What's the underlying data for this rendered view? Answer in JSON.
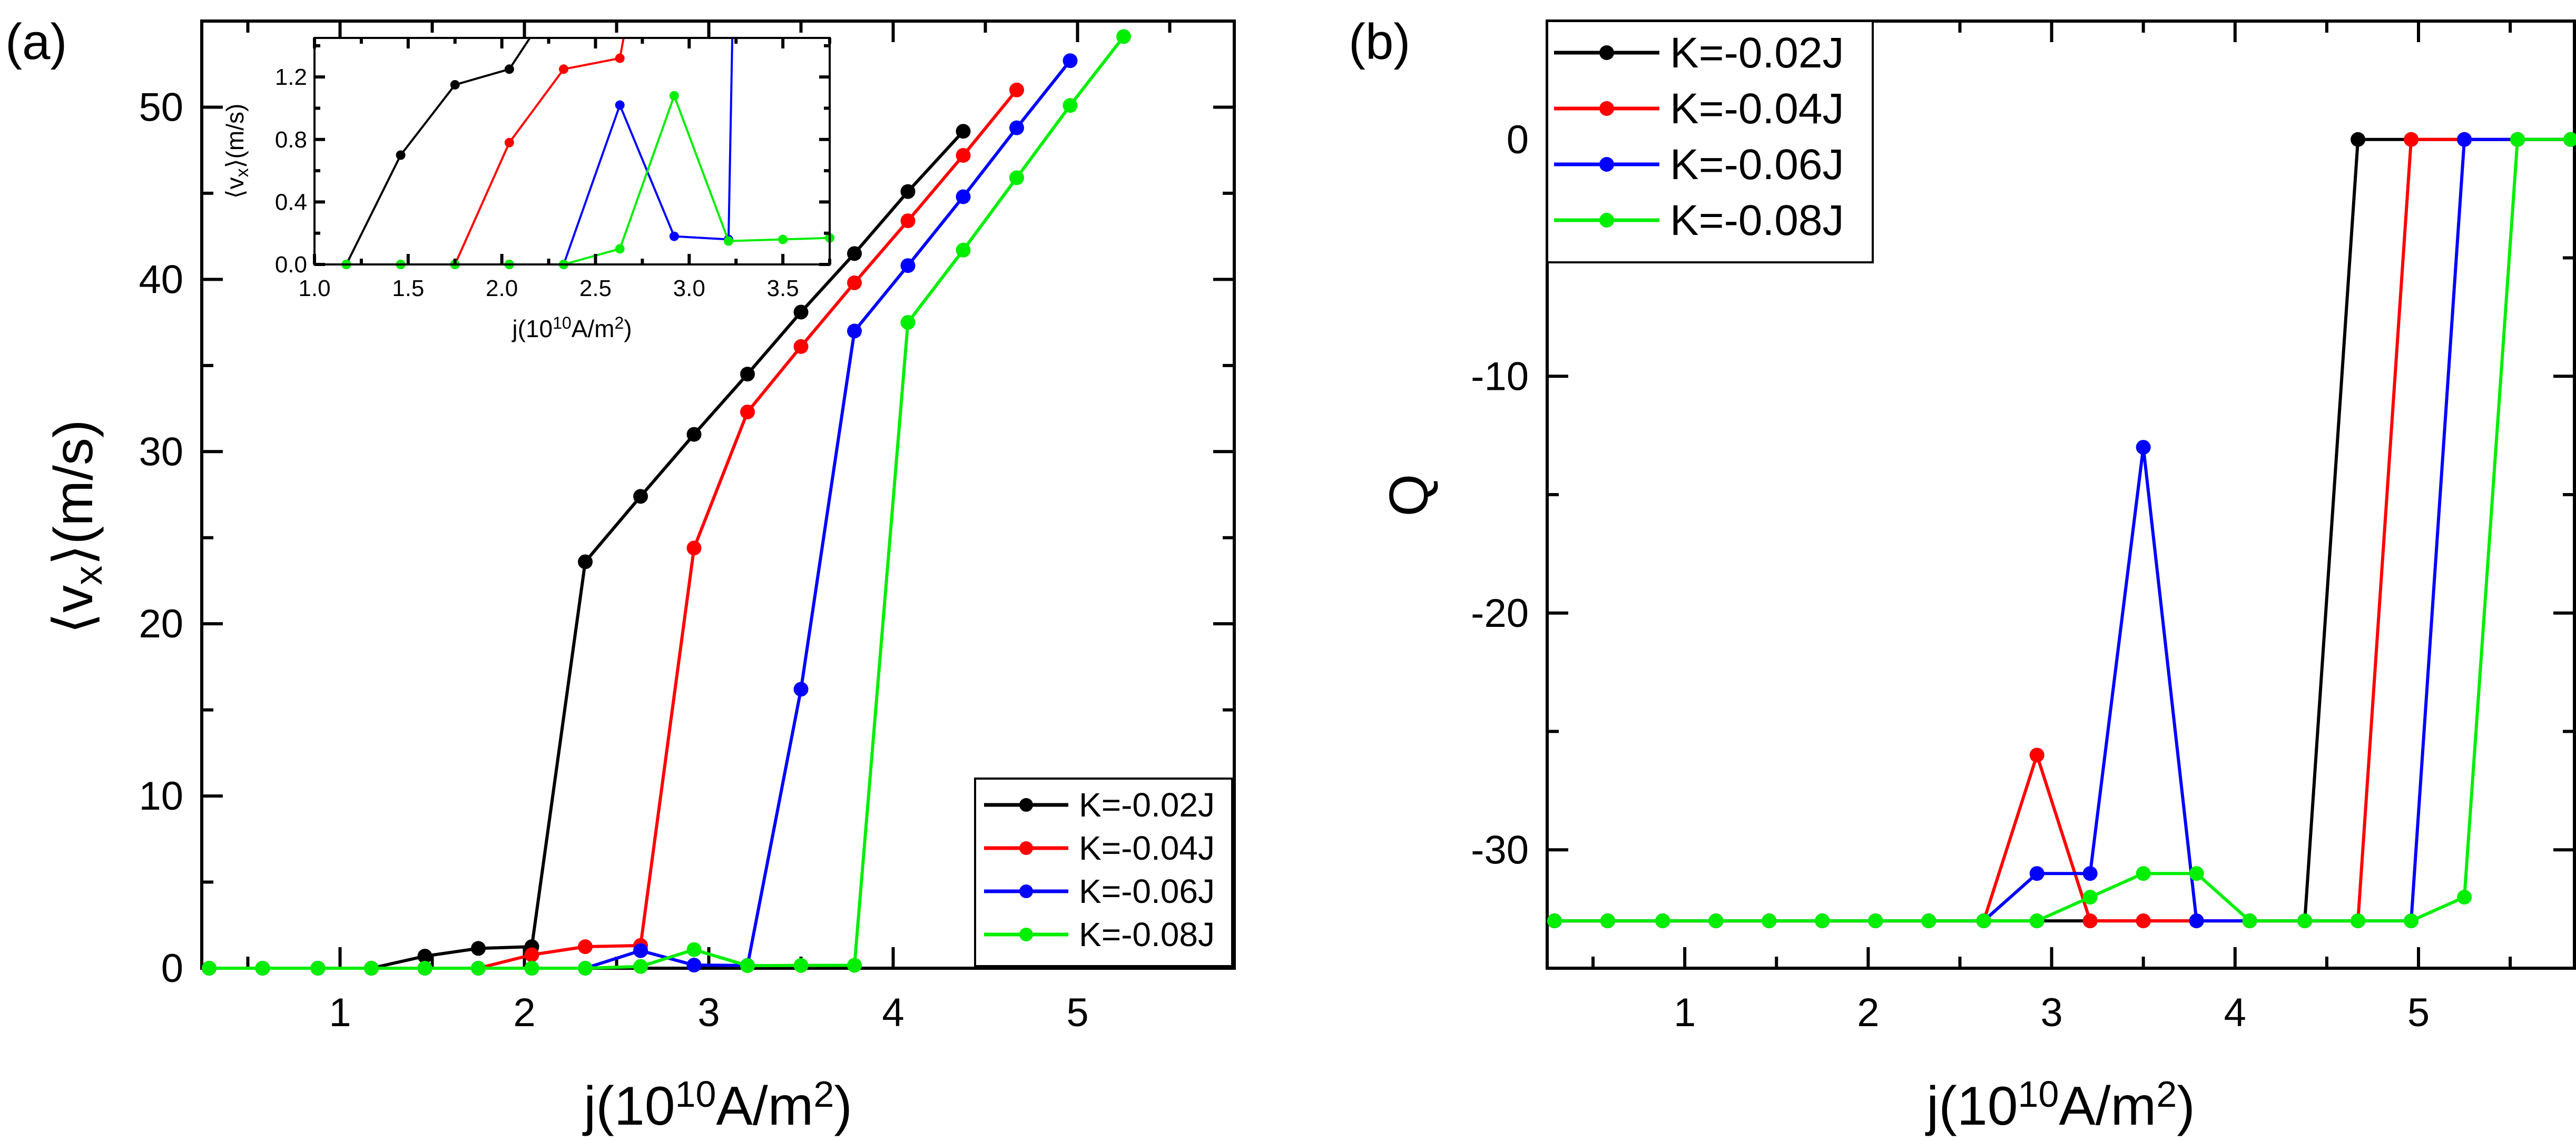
{
  "chart_data": [
    {
      "id": "a",
      "type": "line",
      "panel_label": "(a)",
      "xlabel": "j(10^10A/m^2)",
      "ylabel": "⟨vx⟩(m/s)",
      "xlim": [
        0.25,
        5.85
      ],
      "ylim": [
        0,
        55
      ],
      "xticks": [
        1,
        2,
        3,
        4,
        5
      ],
      "yticks": [
        0,
        10,
        20,
        30,
        40,
        50
      ],
      "legend_position": "bottom-right",
      "series": [
        {
          "name": "K=-0.02J",
          "color": "#000000",
          "x": [
            0.29,
            0.58,
            0.88,
            1.17,
            1.46,
            1.75,
            2.04,
            2.33,
            2.63,
            2.92,
            3.21,
            3.5,
            3.79,
            4.08,
            4.38
          ],
          "y": [
            0,
            0,
            0,
            0,
            0.7,
            1.15,
            1.25,
            23.6,
            27.4,
            31.0,
            34.5,
            38.1,
            41.5,
            45.1,
            48.6
          ]
        },
        {
          "name": "K=-0.04J",
          "color": "#ff0000",
          "x": [
            0.29,
            0.58,
            0.88,
            1.17,
            1.46,
            1.75,
            2.04,
            2.33,
            2.63,
            2.92,
            3.21,
            3.5,
            3.79,
            4.08,
            4.38,
            4.67
          ],
          "y": [
            0,
            0,
            0,
            0,
            0,
            0,
            0.78,
            1.25,
            1.32,
            24.4,
            32.3,
            36.1,
            39.8,
            43.4,
            47.2,
            51.0
          ]
        },
        {
          "name": "K=-0.06J",
          "color": "#0000ff",
          "x": [
            0.29,
            0.58,
            0.88,
            1.17,
            1.46,
            1.75,
            2.04,
            2.33,
            2.63,
            2.92,
            3.21,
            3.5,
            3.79,
            4.08,
            4.38,
            4.67,
            4.96
          ],
          "y": [
            0,
            0,
            0,
            0,
            0,
            0,
            0,
            0,
            1.02,
            0.18,
            0.16,
            16.2,
            37.0,
            40.8,
            44.8,
            48.8,
            52.7
          ]
        },
        {
          "name": "K=-0.08J",
          "color": "#00ee00",
          "x": [
            0.29,
            0.58,
            0.88,
            1.17,
            1.46,
            1.75,
            2.04,
            2.33,
            2.63,
            2.92,
            3.21,
            3.5,
            3.79,
            4.08,
            4.38,
            4.67,
            4.96,
            5.25
          ],
          "y": [
            0,
            0,
            0,
            0,
            0,
            0,
            0,
            0,
            0.1,
            1.08,
            0.15,
            0.16,
            0.17,
            37.5,
            41.7,
            45.9,
            50.1,
            54.1
          ]
        }
      ]
    },
    {
      "id": "a-inset",
      "type": "line",
      "xlabel": "j(10^10A/m^2)",
      "ylabel": "⟨vx⟩(m/s)",
      "xlim": [
        1.0,
        3.75
      ],
      "ylim": [
        0,
        1.45
      ],
      "xticks": [
        1.0,
        1.5,
        2.0,
        2.5,
        3.0,
        3.5
      ],
      "yticks": [
        0.0,
        0.4,
        0.8,
        1.2
      ],
      "series": [
        {
          "name": "K=-0.02J",
          "color": "#000000",
          "x": [
            1.17,
            1.46,
            1.75,
            2.04,
            2.15
          ],
          "y": [
            0,
            0.7,
            1.15,
            1.25,
            1.45
          ]
        },
        {
          "name": "K=-0.04J",
          "color": "#ff0000",
          "x": [
            1.17,
            1.46,
            1.75,
            2.04,
            2.33,
            2.63,
            2.65
          ],
          "y": [
            0,
            0,
            0,
            0.78,
            1.25,
            1.32,
            1.45
          ]
        },
        {
          "name": "K=-0.06J",
          "color": "#0000ff",
          "x": [
            1.17,
            1.46,
            1.75,
            2.04,
            2.33,
            2.63,
            2.92,
            3.21,
            3.23
          ],
          "y": [
            0,
            0,
            0,
            0,
            0,
            1.02,
            0.18,
            0.16,
            1.45
          ]
        },
        {
          "name": "K=-0.08J",
          "color": "#00ee00",
          "x": [
            1.17,
            1.46,
            1.75,
            2.04,
            2.33,
            2.63,
            2.92,
            3.21,
            3.5,
            3.75
          ],
          "y": [
            0,
            0,
            0,
            0,
            0,
            0.1,
            1.08,
            0.15,
            0.16,
            0.17
          ]
        }
      ]
    },
    {
      "id": "b",
      "type": "line",
      "panel_label": "(b)",
      "xlabel": "j(10^10A/m^2)",
      "ylabel": "Q",
      "xlim": [
        0.25,
        5.85
      ],
      "ylim": [
        -35,
        5
      ],
      "xticks": [
        1,
        2,
        3,
        4,
        5
      ],
      "yticks": [
        -30,
        -20,
        -10,
        0
      ],
      "legend_position": "top-left",
      "series": [
        {
          "name": "K=-0.02J",
          "color": "#000000",
          "x": [
            0.29,
            0.58,
            0.88,
            1.17,
            1.46,
            1.75,
            2.04,
            2.33,
            2.63,
            2.92,
            3.21,
            3.5,
            3.79,
            4.08,
            4.38,
            4.67,
            4.96,
            5.25,
            5.54,
            5.83
          ],
          "y": [
            -33,
            -33,
            -33,
            -33,
            -33,
            -33,
            -33,
            -33,
            -33,
            -33,
            -33,
            -33,
            -33,
            -33,
            -33,
            0,
            0,
            0,
            0,
            0
          ]
        },
        {
          "name": "K=-0.04J",
          "color": "#ff0000",
          "x": [
            0.29,
            0.58,
            0.88,
            1.17,
            1.46,
            1.75,
            2.04,
            2.33,
            2.63,
            2.92,
            3.21,
            3.5,
            3.79,
            4.08,
            4.38,
            4.67,
            4.96,
            5.25,
            5.54,
            5.83
          ],
          "y": [
            -33,
            -33,
            -33,
            -33,
            -33,
            -33,
            -33,
            -33,
            -33,
            -26,
            -33,
            -33,
            -33,
            -33,
            -33,
            -33,
            0,
            0,
            0,
            0
          ]
        },
        {
          "name": "K=-0.06J",
          "color": "#0000ff",
          "x": [
            0.29,
            0.58,
            0.88,
            1.17,
            1.46,
            1.75,
            2.04,
            2.33,
            2.63,
            2.92,
            3.21,
            3.5,
            3.79,
            4.08,
            4.38,
            4.67,
            4.96,
            5.25,
            5.54,
            5.83
          ],
          "y": [
            -33,
            -33,
            -33,
            -33,
            -33,
            -33,
            -33,
            -33,
            -33,
            -31,
            -31,
            -13,
            -33,
            -33,
            -33,
            -33,
            -33,
            0,
            0,
            0
          ]
        },
        {
          "name": "K=-0.08J",
          "color": "#00ee00",
          "x": [
            0.29,
            0.58,
            0.88,
            1.17,
            1.46,
            1.75,
            2.04,
            2.33,
            2.63,
            2.92,
            3.21,
            3.5,
            3.79,
            4.08,
            4.38,
            4.67,
            4.96,
            5.25,
            5.54,
            5.83
          ],
          "y": [
            -33,
            -33,
            -33,
            -33,
            -33,
            -33,
            -33,
            -33,
            -33,
            -33,
            -32,
            -31,
            -31,
            -33,
            -33,
            -33,
            -33,
            -32,
            0,
            0
          ]
        }
      ]
    }
  ]
}
